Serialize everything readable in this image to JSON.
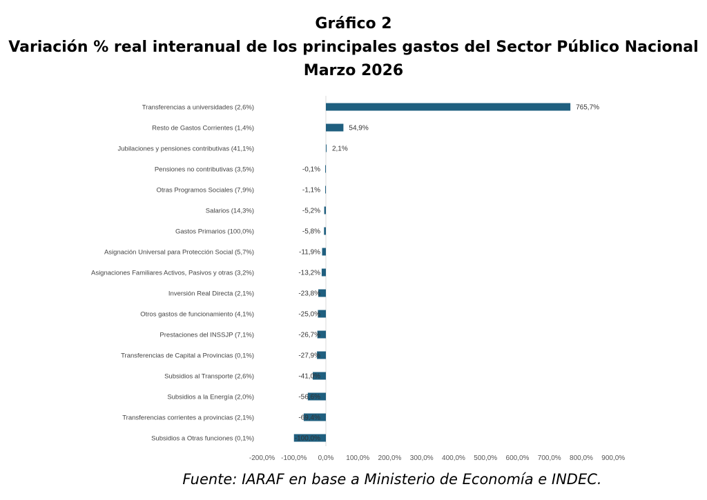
{
  "chart_data": {
    "type": "bar",
    "orientation": "horizontal",
    "title": "Gráfico 2",
    "subtitle": "Variación % real interanual de los principales gastos del Sector Público Nacional",
    "period": "Marzo 2026",
    "xlabel": "",
    "ylabel": "",
    "xlim": [
      -200,
      900
    ],
    "grid": false,
    "bar_color": "#1f5f7f",
    "categories": [
      "Transferencias a universidades (2,6%)",
      "Resto de Gastos Corrientes (1,4%)",
      "Jubilaciones y pensiones contributivas (41,1%)",
      "Pensiones no contributivas (3,5%)",
      "Otras Programos Sociales  (7,9%)",
      "Salarios (14,3%)",
      "Gastos Primarios (100,0%)",
      "Asignación Universal para Protección Social (5,7%)",
      "Asignaciones Familiares Activos, Pasivos y otras (3,2%)",
      "Inversión Real Directa (2,1%)",
      "Otros gastos de funcionamiento (4,1%)",
      "Prestaciones del INSSJP (7,1%)",
      "Transferencias de Capital a Provincias (0,1%)",
      "Subsidios al Transporte (2,6%)",
      "Subsidios a la Energía (2,0%)",
      "Transferencias corrientes a provincias (2,1%)",
      "Subsidios a Otras funciones (0,1%)"
    ],
    "values": [
      765.7,
      54.9,
      2.1,
      -0.1,
      -1.1,
      -5.2,
      -5.8,
      -11.9,
      -13.2,
      -23.8,
      -25.0,
      -26.7,
      -27.9,
      -41.0,
      -56.6,
      -69.4,
      -100.0
    ],
    "data_labels": [
      "765,7%",
      "54,9%",
      "2,1%",
      "-0,1%",
      "-1,1%",
      "-5,2%",
      "-5,8%",
      "-11,9%",
      "-13,2%",
      "-23,8%",
      "-25,0%",
      "-26,7%",
      "-27,9%",
      "-41,0%",
      "-56,6%",
      "-69,4%",
      "-100,0%"
    ],
    "ticks": [
      -200,
      -100,
      0,
      100,
      200,
      300,
      400,
      500,
      600,
      700,
      800,
      900
    ],
    "tick_labels": [
      "-200,0%",
      "-100,0%",
      "0,0%",
      "100,0%",
      "200,0%",
      "300,0%",
      "400,0%",
      "500,0%",
      "600,0%",
      "700,0%",
      "800,0%",
      "900,0%"
    ]
  },
  "source": "Fuente: IARAF en base a Ministerio de Economía e INDEC."
}
